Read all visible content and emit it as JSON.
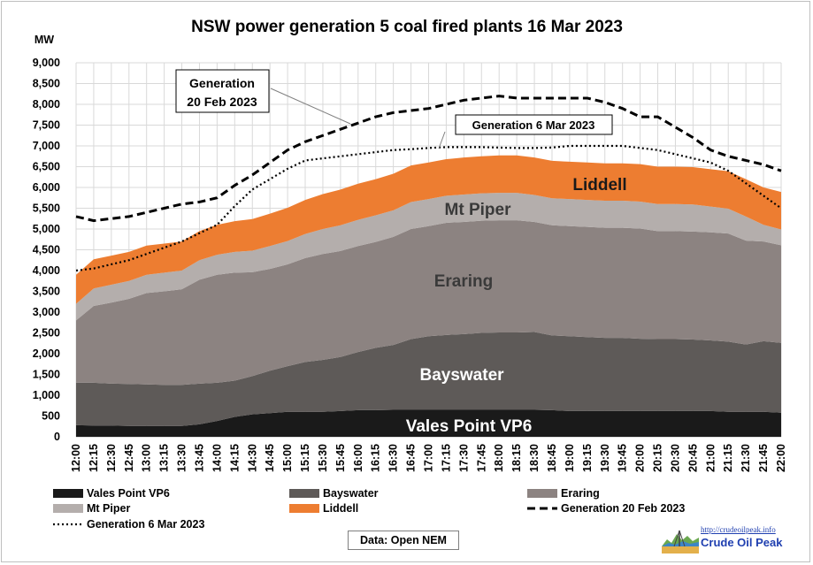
{
  "chart_data": {
    "type": "area",
    "title": "NSW power generation 5 coal fired plants 16 Mar 2023",
    "ylabel": "MW",
    "ylim": [
      0,
      9000
    ],
    "yticks": [
      0,
      500,
      1000,
      1500,
      2000,
      2500,
      3000,
      3500,
      4000,
      4500,
      5000,
      5500,
      6000,
      6500,
      7000,
      7500,
      8000,
      8500,
      9000
    ],
    "ytick_labels": [
      "0",
      "500",
      "1,000",
      "1,500",
      "2,000",
      "2,500",
      "3,000",
      "3,500",
      "4,000",
      "4,500",
      "5,000",
      "5,500",
      "6,000",
      "6,500",
      "7,000",
      "7,500",
      "8,000",
      "8,500",
      "9,000"
    ],
    "x": [
      "12:00",
      "12:15",
      "12:30",
      "12:45",
      "13:00",
      "13:15",
      "13:30",
      "13:45",
      "14:00",
      "14:15",
      "14:30",
      "14:45",
      "15:00",
      "15:15",
      "15:30",
      "15:45",
      "16:00",
      "16:15",
      "16:30",
      "16:45",
      "17:00",
      "17:15",
      "17:30",
      "17:45",
      "18:00",
      "18:15",
      "18:30",
      "18:45",
      "19:00",
      "19:15",
      "19:30",
      "19:45",
      "20:00",
      "20:15",
      "20:30",
      "20:45",
      "21:00",
      "21:15",
      "21:30",
      "21:45",
      "22:00"
    ],
    "grid": true,
    "legend_position": "bottom",
    "series": [
      {
        "name": "Vales Point VP6",
        "kind": "stacked-area",
        "color": "#1a1a1a",
        "values": [
          280,
          270,
          270,
          260,
          260,
          260,
          260,
          300,
          380,
          480,
          540,
          570,
          600,
          600,
          600,
          620,
          640,
          640,
          650,
          650,
          650,
          650,
          650,
          650,
          650,
          650,
          650,
          640,
          620,
          620,
          620,
          620,
          620,
          620,
          620,
          620,
          620,
          600,
          600,
          600,
          580
        ]
      },
      {
        "name": "Bayswater",
        "kind": "stacked-area",
        "color": "#5e5a58",
        "values": [
          1020,
          1030,
          1010,
          1010,
          1000,
          990,
          990,
          980,
          920,
          870,
          920,
          1020,
          1100,
          1200,
          1250,
          1300,
          1400,
          1500,
          1560,
          1700,
          1770,
          1800,
          1820,
          1850,
          1860,
          1860,
          1870,
          1800,
          1800,
          1780,
          1760,
          1760,
          1740,
          1730,
          1730,
          1720,
          1700,
          1690,
          1620,
          1700,
          1680
        ]
      },
      {
        "name": "Eraring",
        "kind": "stacked-area",
        "color": "#8c8381",
        "values": [
          1500,
          1850,
          1950,
          2050,
          2200,
          2250,
          2300,
          2500,
          2600,
          2600,
          2500,
          2450,
          2450,
          2500,
          2550,
          2550,
          2550,
          2550,
          2600,
          2650,
          2650,
          2700,
          2700,
          2700,
          2700,
          2700,
          2650,
          2650,
          2650,
          2650,
          2650,
          2650,
          2650,
          2600,
          2600,
          2600,
          2600,
          2600,
          2500,
          2400,
          2350
        ]
      },
      {
        "name": "Mt Piper",
        "kind": "stacked-area",
        "color": "#b4aeac",
        "values": [
          400,
          420,
          430,
          430,
          440,
          450,
          450,
          470,
          480,
          500,
          520,
          550,
          560,
          580,
          600,
          620,
          630,
          640,
          640,
          650,
          650,
          650,
          660,
          660,
          660,
          660,
          650,
          650,
          650,
          650,
          650,
          650,
          650,
          650,
          650,
          650,
          620,
          600,
          580,
          400,
          380
        ]
      },
      {
        "name": "Liddell",
        "kind": "stacked-area",
        "color": "#ed7d31",
        "values": [
          700,
          700,
          700,
          700,
          700,
          700,
          700,
          700,
          720,
          740,
          760,
          780,
          800,
          820,
          840,
          860,
          870,
          870,
          880,
          880,
          880,
          880,
          890,
          890,
          900,
          900,
          900,
          900,
          900,
          900,
          900,
          900,
          900,
          900,
          900,
          900,
          900,
          900,
          900,
          900,
          900
        ]
      },
      {
        "name": "Generation 20 Feb 2023",
        "kind": "dashed-line",
        "color": "#000000",
        "values": [
          5300,
          5200,
          5250,
          5300,
          5400,
          5500,
          5600,
          5650,
          5750,
          6050,
          6300,
          6600,
          6900,
          7100,
          7250,
          7400,
          7550,
          7700,
          7800,
          7850,
          7900,
          8000,
          8100,
          8150,
          8200,
          8150,
          8150,
          8150,
          8150,
          8150,
          8050,
          7900,
          7700,
          7700,
          7450,
          7200,
          6900,
          6750,
          6650,
          6550,
          6400
        ]
      },
      {
        "name": "Generation 6 Mar 2023",
        "kind": "dotted-line",
        "color": "#000000",
        "values": [
          4000,
          4050,
          4150,
          4250,
          4400,
          4550,
          4700,
          4900,
          5100,
          5550,
          5950,
          6200,
          6450,
          6650,
          6700,
          6750,
          6800,
          6850,
          6900,
          6920,
          6950,
          6970,
          6970,
          6970,
          6960,
          6950,
          6950,
          6960,
          7000,
          7000,
          7000,
          7000,
          6950,
          6900,
          6800,
          6700,
          6600,
          6400,
          6100,
          5800,
          5500
        ]
      }
    ],
    "annotations": {
      "gen20_callout": "Generation\n20 Feb 2023",
      "gen6_callout": "Generation 6 Mar 2023",
      "area_labels": [
        "Liddell",
        "Mt Piper",
        "Eraring",
        "Bayswater",
        "Vales Point VP6"
      ]
    }
  },
  "legend": [
    {
      "label": "Vales Point VP6",
      "color": "#1a1a1a",
      "kind": "swatch"
    },
    {
      "label": "Bayswater",
      "color": "#5e5a58",
      "kind": "swatch"
    },
    {
      "label": "Eraring",
      "color": "#8c8381",
      "kind": "swatch"
    },
    {
      "label": "Mt Piper",
      "color": "#b4aeac",
      "kind": "swatch"
    },
    {
      "label": "Liddell",
      "color": "#ed7d31",
      "kind": "swatch"
    },
    {
      "label": "Generation 20 Feb 2023",
      "color": "#000000",
      "kind": "dashed"
    },
    {
      "label": "Generation 6 Mar 2023",
      "color": "#000000",
      "kind": "dotted"
    }
  ],
  "source_label": "Data: Open NEM",
  "logo": {
    "url_text": "http://crudeoilpeak.info",
    "name": "Crude Oil Peak"
  }
}
